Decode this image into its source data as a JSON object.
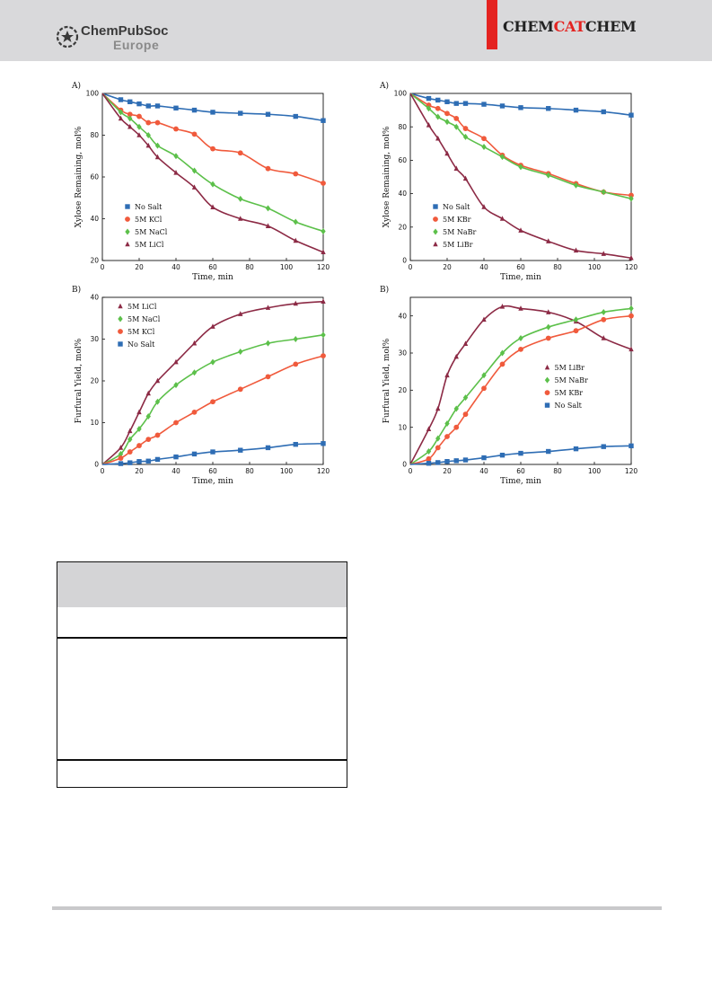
{
  "header": {
    "publisher_line1": "ChemPubSoc",
    "publisher_line2": "Europe",
    "journal_part1": "CHEM",
    "journal_part2": "CAT",
    "journal_part3": "CHEM",
    "accent_color": "#e42320",
    "bar_color": "#d9d9db"
  },
  "chart_data": [
    {
      "type": "scatter",
      "panel": "A)",
      "xlabel": "Time, min",
      "ylabel": "Xylose Remaining, mol%",
      "xlim": [
        0,
        120
      ],
      "ylim": [
        20,
        100
      ],
      "xticks": [
        0,
        20,
        40,
        60,
        80,
        100,
        120
      ],
      "yticks": [
        20,
        40,
        60,
        80,
        100
      ],
      "legend_position": "bottom-left",
      "x": [
        0,
        10,
        15,
        20,
        25,
        30,
        40,
        50,
        60,
        75,
        90,
        105,
        120
      ],
      "series": [
        {
          "name": "No Salt",
          "marker": "square",
          "color": "#2e6db4",
          "values": [
            100,
            97,
            96,
            95,
            94,
            94,
            93,
            92,
            91,
            90.5,
            90,
            89,
            87
          ]
        },
        {
          "name": "5M KCl",
          "marker": "circle",
          "color": "#f05a3c",
          "values": [
            100,
            92,
            90,
            89,
            86,
            86,
            83,
            80.5,
            73.5,
            71.5,
            64,
            61.5,
            57
          ]
        },
        {
          "name": "5M NaCl",
          "marker": "diamond",
          "color": "#5cc04a",
          "values": [
            100,
            91,
            88,
            84,
            80,
            75,
            70,
            63,
            56.5,
            49.5,
            45,
            38.5,
            34
          ]
        },
        {
          "name": "5M LiCl",
          "marker": "triangle",
          "color": "#8c2a45",
          "values": [
            100,
            88,
            84,
            80,
            75,
            69.5,
            62,
            55,
            45.5,
            40,
            36.5,
            29.5,
            24
          ]
        }
      ]
    },
    {
      "type": "scatter",
      "panel": "A)",
      "xlabel": "Time, min",
      "ylabel": "Xylose Remaining, mol%",
      "xlim": [
        0,
        120
      ],
      "ylim": [
        0,
        100
      ],
      "xticks": [
        0,
        20,
        40,
        60,
        80,
        100,
        120
      ],
      "yticks": [
        0,
        20,
        40,
        60,
        80,
        100
      ],
      "legend_position": "bottom-left",
      "x": [
        0,
        10,
        15,
        20,
        25,
        30,
        40,
        50,
        60,
        75,
        90,
        105,
        120
      ],
      "series": [
        {
          "name": "No Salt",
          "marker": "square",
          "color": "#2e6db4",
          "values": [
            100,
            97,
            96,
            95,
            94,
            94,
            93.5,
            92.5,
            91.5,
            91,
            90,
            89,
            87
          ]
        },
        {
          "name": "5M KBr",
          "marker": "circle",
          "color": "#f05a3c",
          "values": [
            100,
            93,
            91,
            88,
            85,
            79,
            73,
            63,
            57,
            52,
            46,
            41,
            39
          ]
        },
        {
          "name": "5M NaBr",
          "marker": "diamond",
          "color": "#5cc04a",
          "values": [
            100,
            91,
            86,
            83,
            80,
            74,
            68,
            62,
            56,
            51,
            45,
            41,
            37
          ]
        },
        {
          "name": "5M LiBr",
          "marker": "triangle",
          "color": "#8c2a45",
          "values": [
            100,
            81,
            73,
            64,
            55,
            49,
            32,
            25,
            18,
            11.5,
            6,
            4,
            1.5
          ]
        }
      ]
    },
    {
      "type": "scatter",
      "panel": "B)",
      "xlabel": "Time, min",
      "ylabel": "Furfural Yield, mol%",
      "xlim": [
        0,
        120
      ],
      "ylim": [
        0,
        40
      ],
      "xticks": [
        0,
        20,
        40,
        60,
        80,
        100,
        120
      ],
      "yticks": [
        0,
        10,
        20,
        30,
        40
      ],
      "legend_position": "top-left",
      "x": [
        0,
        10,
        15,
        20,
        25,
        30,
        40,
        50,
        60,
        75,
        90,
        105,
        120
      ],
      "series": [
        {
          "name": "5M LiCl",
          "marker": "triangle",
          "color": "#8c2a45",
          "values": [
            0,
            4,
            8,
            12.5,
            17,
            20,
            24.5,
            29,
            33,
            36,
            37.5,
            38.5,
            39
          ]
        },
        {
          "name": "5M NaCl",
          "marker": "diamond",
          "color": "#5cc04a",
          "values": [
            0,
            2.5,
            6,
            8.5,
            11.5,
            15,
            19,
            22,
            24.5,
            27,
            29,
            30,
            31
          ]
        },
        {
          "name": "5M KCl",
          "marker": "circle",
          "color": "#f05a3c",
          "values": [
            0,
            1.5,
            3,
            4.5,
            6,
            7,
            10,
            12.5,
            15,
            18,
            21,
            24,
            26
          ]
        },
        {
          "name": "No Salt",
          "marker": "square",
          "color": "#2e6db4",
          "values": [
            0,
            0.2,
            0.4,
            0.7,
            0.8,
            1.2,
            1.8,
            2.5,
            3,
            3.4,
            4,
            4.8,
            5
          ]
        }
      ]
    },
    {
      "type": "scatter",
      "panel": "B)",
      "xlabel": "Time, min",
      "ylabel": "Furfural Yield, mol%",
      "xlim": [
        0,
        120
      ],
      "ylim": [
        0,
        45
      ],
      "xticks": [
        0,
        20,
        40,
        60,
        80,
        100,
        120
      ],
      "yticks": [
        0,
        10,
        20,
        30,
        40
      ],
      "legend_position": "center-right",
      "x": [
        0,
        10,
        15,
        20,
        25,
        30,
        40,
        50,
        60,
        75,
        90,
        105,
        120
      ],
      "series": [
        {
          "name": "5M LiBr",
          "marker": "triangle",
          "color": "#8c2a45",
          "values": [
            0,
            9.5,
            15,
            24,
            29,
            32.5,
            39,
            42.5,
            42,
            41,
            38.5,
            34,
            31
          ]
        },
        {
          "name": "5M NaBr",
          "marker": "diamond",
          "color": "#5cc04a",
          "values": [
            0,
            3.5,
            7,
            11,
            15,
            18,
            24,
            30,
            34,
            37,
            39,
            41,
            42
          ]
        },
        {
          "name": "5M KBr",
          "marker": "circle",
          "color": "#f05a3c",
          "values": [
            0,
            1.5,
            4.5,
            7.5,
            10,
            13.5,
            20.5,
            27,
            31,
            34,
            36,
            39,
            40
          ]
        },
        {
          "name": "No Salt",
          "marker": "square",
          "color": "#2e6db4",
          "values": [
            0,
            0.3,
            0.5,
            0.8,
            1,
            1.2,
            1.8,
            2.5,
            3,
            3.5,
            4.2,
            4.8,
            5
          ]
        }
      ]
    }
  ]
}
